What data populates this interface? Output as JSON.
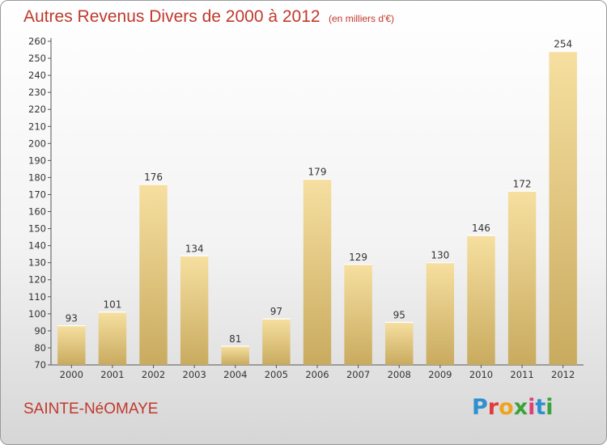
{
  "header": {
    "title": "Autres Revenus Divers de 2000 à 2012",
    "subtitle": "(en milliers d'€)"
  },
  "footer": {
    "commune": "SAINTE-NéOMAYE",
    "logo_text": "Proxiti"
  },
  "colors": {
    "bar_light": "#f6dfa0",
    "bar_dark": "#c9ab5f",
    "title": "#c0392b"
  },
  "chart_data": {
    "type": "bar",
    "categories": [
      "2000",
      "2001",
      "2002",
      "2003",
      "2004",
      "2005",
      "2006",
      "2007",
      "2008",
      "2009",
      "2010",
      "2011",
      "2012"
    ],
    "values": [
      93,
      101,
      176,
      134,
      81,
      97,
      179,
      129,
      95,
      130,
      146,
      172,
      254
    ],
    "title": "Autres Revenus Divers de 2000 à 2012",
    "subtitle": "(en milliers d'€)",
    "xlabel": "",
    "ylabel": "",
    "ylim": [
      70,
      260
    ],
    "ytick_step": 10,
    "grid": false,
    "data_labels": true
  }
}
